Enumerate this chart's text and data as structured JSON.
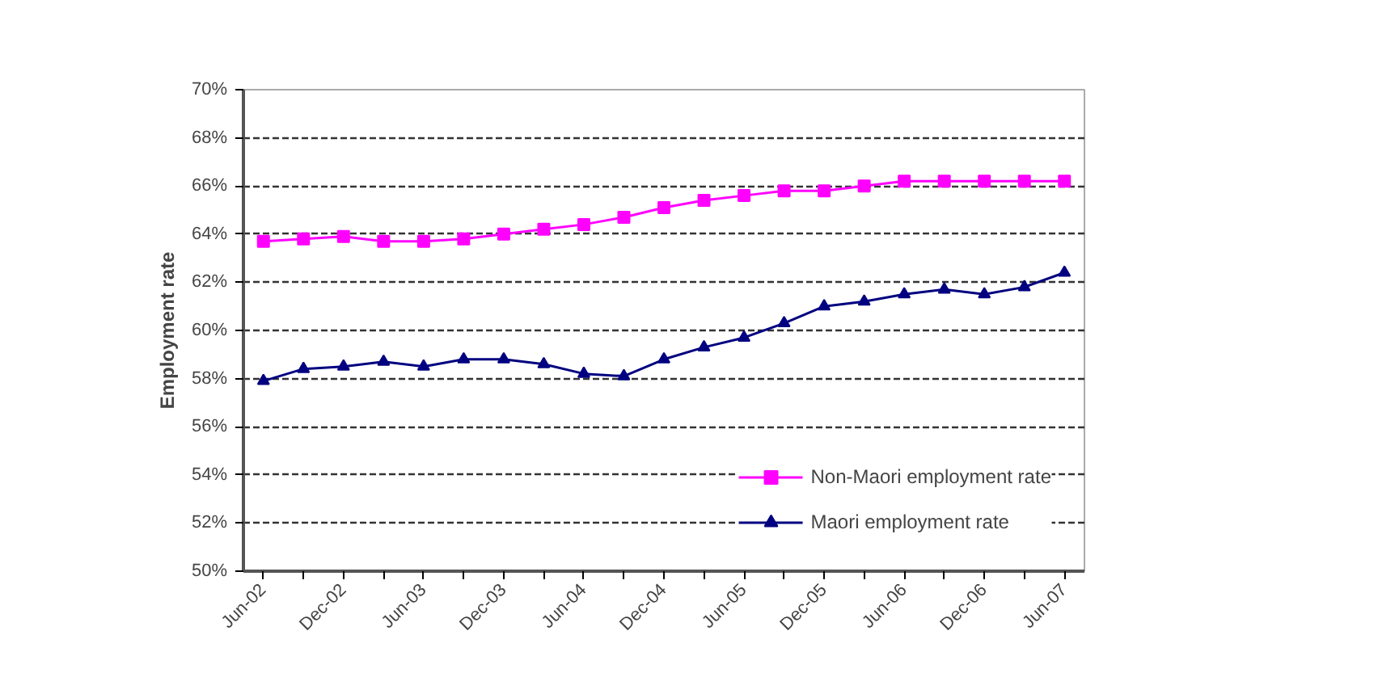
{
  "chart_data": {
    "type": "line",
    "ylabel": "Employment rate",
    "categories": [
      "Jun-02",
      null,
      "Dec-02",
      null,
      "Jun-03",
      null,
      "Dec-03",
      null,
      "Jun-04",
      null,
      "Dec-04",
      null,
      "Jun-05",
      null,
      "Dec-05",
      null,
      "Jun-06",
      null,
      "Dec-06",
      null,
      "Jun-07"
    ],
    "series": [
      {
        "name": "Non-Maori employment rate",
        "color": "#ff00ff",
        "marker": "square",
        "values": [
          63.7,
          63.8,
          63.9,
          63.7,
          63.7,
          63.8,
          64.0,
          64.2,
          64.4,
          64.7,
          65.1,
          65.4,
          65.6,
          65.8,
          65.8,
          66.0,
          66.2,
          66.2,
          66.2,
          66.2,
          66.2
        ]
      },
      {
        "name": "Maori employment rate",
        "color": "#000080",
        "marker": "triangle",
        "values": [
          57.9,
          58.4,
          58.5,
          58.7,
          58.5,
          58.8,
          58.8,
          58.6,
          58.2,
          58.1,
          58.8,
          59.3,
          59.7,
          60.3,
          61.0,
          61.2,
          61.5,
          61.7,
          61.5,
          61.8,
          62.4
        ]
      }
    ],
    "ylim": [
      50,
      70
    ],
    "yticks": [
      {
        "value": 50,
        "label": "50%"
      },
      {
        "value": 52,
        "label": "52%"
      },
      {
        "value": 54,
        "label": "54%"
      },
      {
        "value": 56,
        "label": "56%"
      },
      {
        "value": 58,
        "label": "58%"
      },
      {
        "value": 60,
        "label": "60%"
      },
      {
        "value": 62,
        "label": "62%"
      },
      {
        "value": 64,
        "label": "64%"
      },
      {
        "value": 66,
        "label": "66%"
      },
      {
        "value": 68,
        "label": "68%"
      },
      {
        "value": 70,
        "label": "70%"
      }
    ],
    "grid": "y",
    "legend": "bottom right",
    "line_style": "solid"
  }
}
